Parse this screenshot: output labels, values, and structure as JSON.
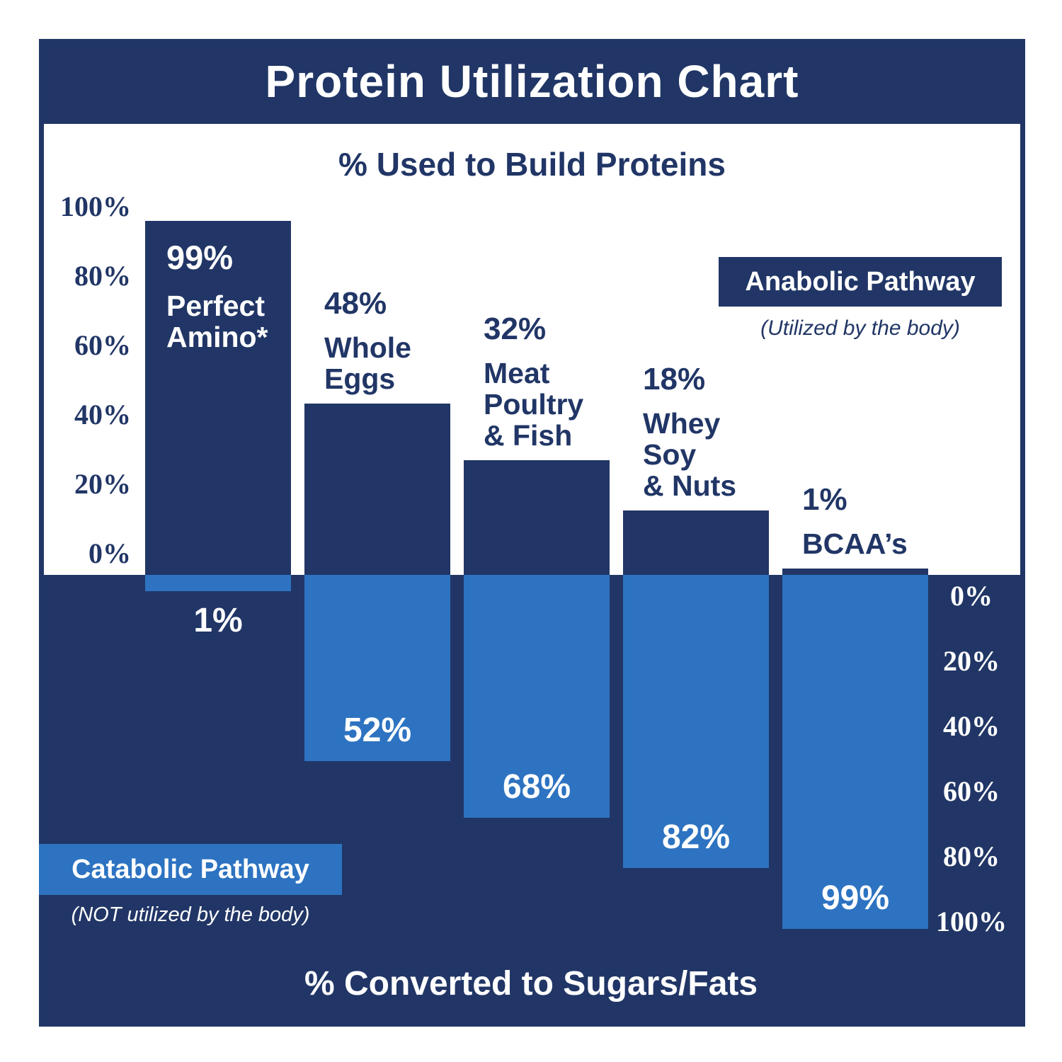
{
  "title": "Protein Utilization Chart",
  "upper_axis_title": "% Used to Build Proteins",
  "lower_axis_title": "% Converted to Sugars/Fats",
  "legend": {
    "anabolic": {
      "label": "Anabolic Pathway",
      "caption": "(Utilized by the body)"
    },
    "catabolic": {
      "label": "Catabolic Pathway",
      "caption": "(NOT utilized by the body)"
    }
  },
  "colors": {
    "navy": "#213666",
    "blue": "#2d73c1",
    "white": "#ffffff"
  },
  "chart_data": {
    "type": "bar",
    "title": "Protein Utilization Chart",
    "categories": [
      "Perfect Amino*",
      "Whole Eggs",
      "Meat Poultry & Fish",
      "Whey Soy & Nuts",
      "BCAA’s"
    ],
    "category_lines": [
      [
        "Perfect",
        "Amino*"
      ],
      [
        "Whole",
        "Eggs"
      ],
      [
        "Meat",
        "Poultry",
        "& Fish"
      ],
      [
        "Whey",
        "Soy",
        "& Nuts"
      ],
      [
        "BCAA’s"
      ]
    ],
    "series": [
      {
        "name": "% Used to Build Proteins (Anabolic Pathway — Utilized by the body)",
        "values": [
          99,
          48,
          32,
          18,
          1
        ]
      },
      {
        "name": "% Converted to Sugars/Fats (Catabolic Pathway — NOT utilized by the body)",
        "values": [
          1,
          52,
          68,
          82,
          99
        ]
      }
    ],
    "value_labels": {
      "anabolic": [
        "99%",
        "48%",
        "32%",
        "18%",
        "1%"
      ],
      "catabolic": [
        "1%",
        "52%",
        "68%",
        "82%",
        "99%"
      ]
    },
    "left_axis_ticks": [
      "100%",
      "80%",
      "60%",
      "40%",
      "20%",
      "0%"
    ],
    "right_axis_ticks": [
      "0%",
      "20%",
      "40%",
      "60%",
      "80%",
      "100%"
    ],
    "ylim": [
      0,
      100
    ],
    "grid": false,
    "legend_position": {
      "anabolic": "upper-right",
      "catabolic": "lower-left"
    }
  }
}
